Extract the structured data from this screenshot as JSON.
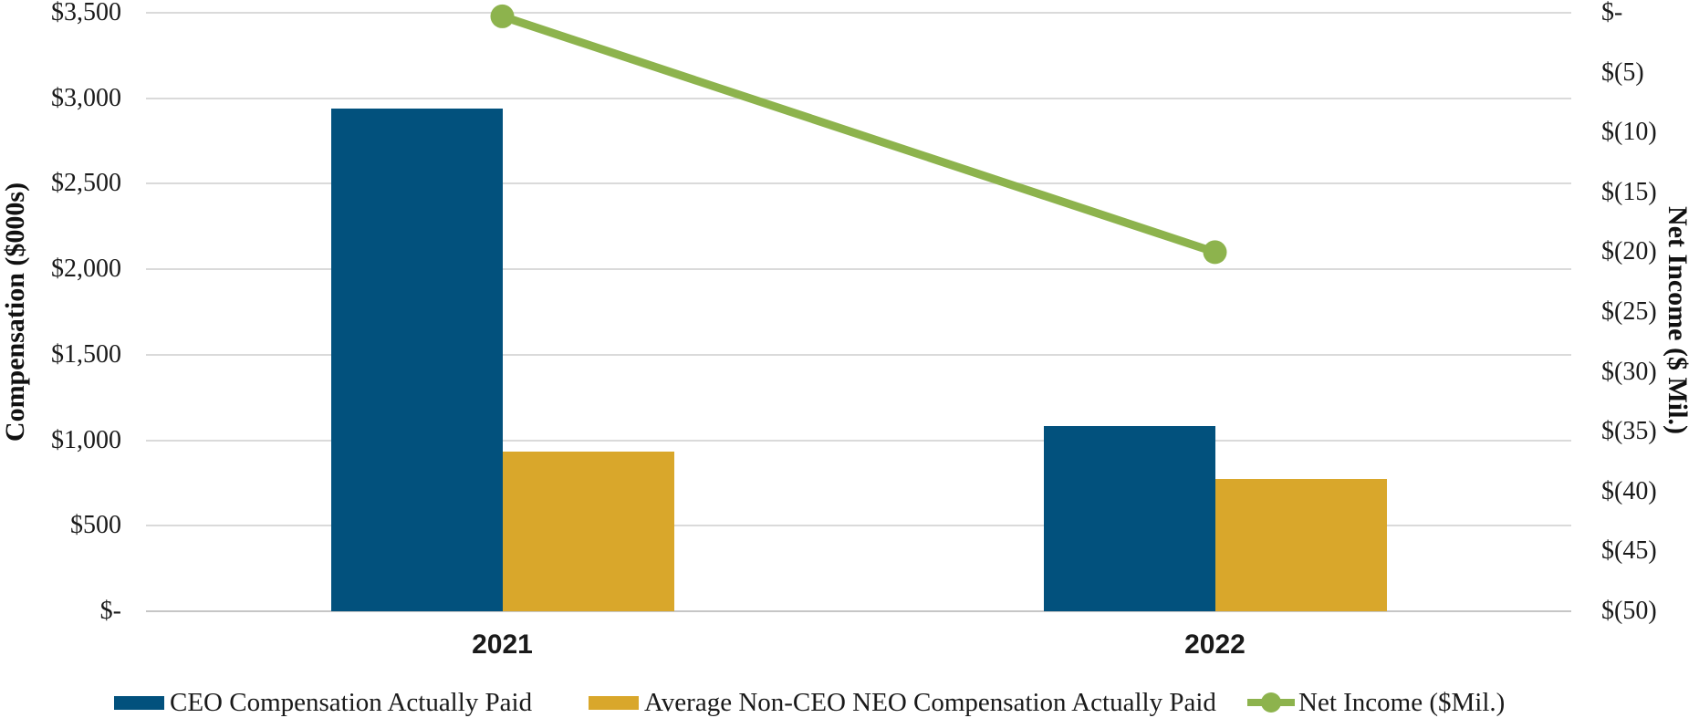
{
  "chart_data": {
    "type": "bar",
    "subtype": "combo-bar-line-dual-axis",
    "categories": [
      "2021",
      "2022"
    ],
    "series": [
      {
        "name": "CEO Compensation Actually Paid",
        "type": "bar",
        "axis": "left",
        "color": "#02517D",
        "values": [
          2940,
          1085
        ]
      },
      {
        "name": "Average Non-CEO NEO Compensation Actually Paid",
        "type": "bar",
        "axis": "left",
        "color": "#D9A72B",
        "values": [
          935,
          775
        ]
      },
      {
        "name": "Net Income ($Mil.)",
        "type": "line",
        "axis": "right",
        "color": "#8DB34D",
        "values": [
          -0.3,
          -20
        ]
      }
    ],
    "left_axis": {
      "title": "Compensation ($000s)",
      "min": 0,
      "max": 3500,
      "step": 500,
      "tick_labels_bottom_to_top": [
        "$-",
        "$500",
        "$1,000",
        "$1,500",
        "$2,000",
        "$2,500",
        "$3,000",
        "$3,500"
      ]
    },
    "right_axis": {
      "title": "Net Income ($ Mil.)",
      "min": -50,
      "max": 0,
      "step": 5,
      "tick_labels_top_to_bottom": [
        "$-",
        "$(5)",
        "$(10)",
        "$(15)",
        "$(20)",
        "$(25)",
        "$(30)",
        "$(35)",
        "$(40)",
        "$(45)",
        "$(50)"
      ]
    },
    "grid": true,
    "legend_position": "bottom",
    "legend": [
      {
        "label": "CEO Compensation Actually Paid",
        "swatch": "bar",
        "color": "#02517D"
      },
      {
        "label": "Average Non-CEO NEO Compensation Actually Paid",
        "swatch": "bar",
        "color": "#D9A72B"
      },
      {
        "label": "Net Income ($Mil.)",
        "swatch": "line",
        "color": "#8DB34D"
      }
    ],
    "colors": {
      "gridline": "#DADADA",
      "baseline": "#C6C6C6",
      "text": "#1a1a1a",
      "background": "#ffffff"
    }
  }
}
